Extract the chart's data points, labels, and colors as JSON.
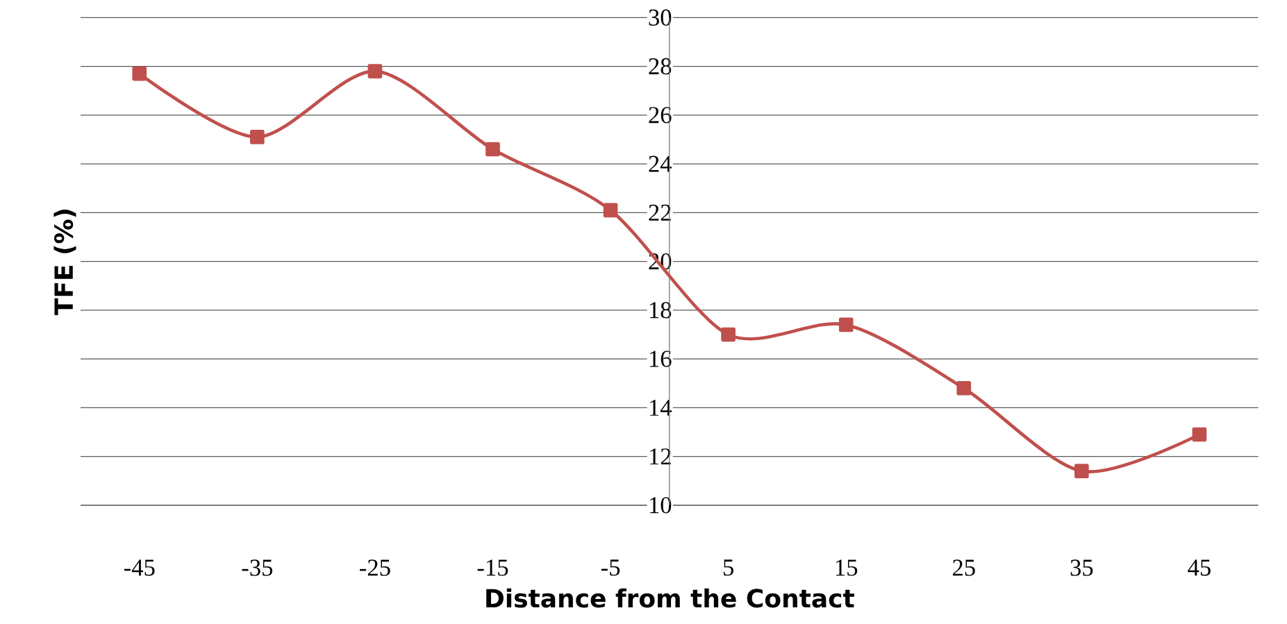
{
  "chart_data": {
    "type": "line",
    "xlabel": "Distance from the Contact",
    "ylabel": "TFE (%)",
    "categories": [
      "-45",
      "-35",
      "-25",
      "-15",
      "-5",
      "5",
      "15",
      "25",
      "35",
      "45"
    ],
    "series": [
      {
        "color": "#c0504d",
        "values": [
          27.7,
          25.1,
          27.8,
          24.6,
          22.1,
          17.0,
          17.4,
          14.8,
          11.4,
          12.9
        ]
      }
    ],
    "ylim": [
      10,
      30
    ],
    "yticks": [
      10,
      12,
      14,
      16,
      18,
      20,
      22,
      24,
      26,
      28,
      30
    ],
    "grid": "y",
    "marker": "square",
    "line_style": "solid"
  }
}
